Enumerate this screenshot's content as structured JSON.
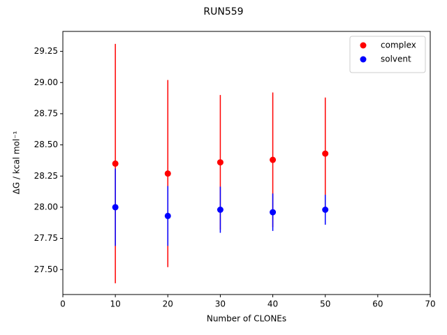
{
  "chart_data": {
    "type": "scatter",
    "title": "RUN559",
    "xlabel": "Number of CLONEs",
    "ylabel": "ΔG / kcal mol⁻¹",
    "xlim": [
      0,
      70
    ],
    "xticks": [
      0,
      10,
      20,
      30,
      40,
      50,
      60,
      70
    ],
    "ylim": [
      27.3,
      29.41
    ],
    "yticks": [
      {
        "value": 27.5,
        "label": "27.50"
      },
      {
        "value": 27.75,
        "label": "27.75"
      },
      {
        "value": 28.0,
        "label": "28.00"
      },
      {
        "value": 28.25,
        "label": "28.25"
      },
      {
        "value": 28.5,
        "label": "28.50"
      },
      {
        "value": 28.75,
        "label": "28.75"
      },
      {
        "value": 29.0,
        "label": "29.00"
      },
      {
        "value": 29.25,
        "label": "29.25"
      }
    ],
    "legend": "upper right",
    "series": [
      {
        "name": "complex",
        "color": "#ff0000",
        "x": [
          10,
          20,
          30,
          40,
          50
        ],
        "values": [
          28.35,
          28.27,
          28.36,
          28.38,
          28.43
        ],
        "errors": [
          0.96,
          0.75,
          0.54,
          0.54,
          0.45
        ]
      },
      {
        "name": "solvent",
        "color": "#0000ff",
        "x": [
          10,
          20,
          30,
          40,
          50
        ],
        "values": [
          28.0,
          27.93,
          27.98,
          27.96,
          27.98
        ],
        "errors": [
          0.31,
          0.24,
          0.185,
          0.15,
          0.12
        ]
      }
    ]
  }
}
